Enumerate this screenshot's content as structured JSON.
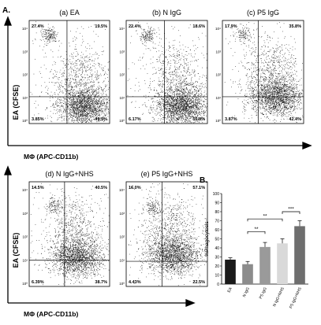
{
  "figure": {
    "panel_a_label": "A.",
    "panel_b_label": "B.",
    "y_axis_label": "EA (CFSE)",
    "x_axis_label": "MΦ (APC-CD11b)"
  },
  "flow_panels": [
    {
      "title": "(a) EA",
      "q_ul": "27.4%",
      "q_ur": "19.5%",
      "q_ll": "3.85%",
      "q_lr": "49.3%",
      "ticks": [
        "10⁴",
        "10³",
        "10²",
        "10¹",
        "10⁰"
      ]
    },
    {
      "title": "(b) N IgG",
      "q_ul": "22.4%",
      "q_ur": "18.6%",
      "q_ll": "6.17%",
      "q_lr": "53.8%",
      "ticks": [
        "10⁴",
        "10³",
        "10²",
        "10¹",
        "10⁰"
      ]
    },
    {
      "title": "(c) P5 IgG",
      "q_ul": "17.9%",
      "q_ur": "35.8%",
      "q_ll": "3.87%",
      "q_lr": "42.4%",
      "ticks": [
        "10⁴",
        "10³",
        "10²",
        "10¹",
        "10⁰"
      ]
    },
    {
      "title": "(d) N IgG+NHS",
      "q_ul": "14.5%",
      "q_ur": "40.5%",
      "q_ll": "6.39%",
      "q_lr": "38.7%",
      "ticks": [
        "10⁴",
        "10³",
        "10²",
        "10¹",
        "10⁰"
      ]
    },
    {
      "title": "(e) P5 IgG+NHS",
      "q_ul": "16.0%",
      "q_ur": "57.1%",
      "q_ll": "4.43%",
      "q_lr": "22.5%",
      "ticks": [
        "10⁴",
        "10³",
        "10²",
        "10¹",
        "10⁰"
      ]
    }
  ],
  "chart_data": {
    "type": "bar",
    "ylabel": "%Phagocytosis",
    "ylim": [
      0,
      100
    ],
    "yticks": [
      0,
      10,
      20,
      30,
      40,
      50,
      60,
      70,
      80,
      90,
      100
    ],
    "categories": [
      "EA",
      "N IgG",
      "P5 IgG",
      "N IgG+NHS",
      "P5 IgG+NHS"
    ],
    "values": [
      27,
      22,
      41,
      45,
      64
    ],
    "errors": [
      2,
      3,
      5,
      5,
      6
    ],
    "bar_colors": [
      "#1a1a1a",
      "#8c8c8c",
      "#9a9a9a",
      "#d9d9d9",
      "#6e6e6e"
    ],
    "significance": [
      {
        "from": 1,
        "to": 2,
        "label": "**"
      },
      {
        "from": 1,
        "to": 3,
        "label": "**"
      },
      {
        "from": 3,
        "to": 4,
        "label": "***"
      }
    ]
  }
}
